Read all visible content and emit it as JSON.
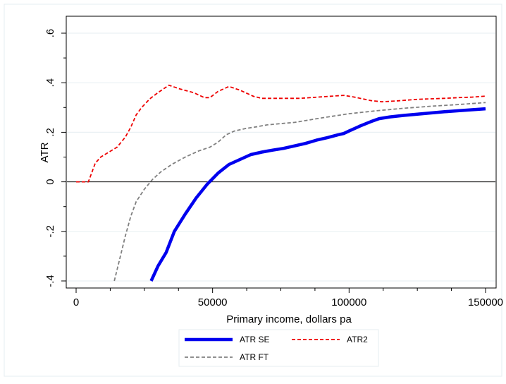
{
  "chart_data": {
    "type": "line",
    "xlabel": "Primary income, dollars pa",
    "ylabel": "ATR",
    "xlim": [
      0,
      150000
    ],
    "ylim": [
      -0.4,
      0.6
    ],
    "xticks": [
      {
        "value": 0,
        "label": "0"
      },
      {
        "value": 50000,
        "label": "50000"
      },
      {
        "value": 100000,
        "label": "100000"
      },
      {
        "value": 150000,
        "label": "150000"
      }
    ],
    "yticks": [
      {
        "value": -0.4,
        "label": "-.4"
      },
      {
        "value": -0.2,
        "label": "-.2"
      },
      {
        "value": 0,
        "label": "0"
      },
      {
        "value": 0.2,
        "label": ".2"
      },
      {
        "value": 0.4,
        "label": ".4"
      },
      {
        "value": 0.6,
        "label": ".6"
      }
    ],
    "grid": "horizontal",
    "zero_line": true,
    "legend_position": "bottom",
    "series": [
      {
        "name": "ATR SE",
        "color": "#0000ee",
        "style": "solid-thick",
        "points": [
          [
            27500,
            -0.4
          ],
          [
            30000,
            -0.34
          ],
          [
            33000,
            -0.285
          ],
          [
            36000,
            -0.2
          ],
          [
            40000,
            -0.13
          ],
          [
            44000,
            -0.065
          ],
          [
            48000,
            -0.01
          ],
          [
            52000,
            0.035
          ],
          [
            56000,
            0.07
          ],
          [
            60000,
            0.09
          ],
          [
            64000,
            0.11
          ],
          [
            68000,
            0.12
          ],
          [
            72000,
            0.128
          ],
          [
            76000,
            0.135
          ],
          [
            80000,
            0.145
          ],
          [
            84000,
            0.155
          ],
          [
            88000,
            0.168
          ],
          [
            92000,
            0.178
          ],
          [
            96000,
            0.19
          ],
          [
            98000,
            0.195
          ],
          [
            100000,
            0.205
          ],
          [
            104000,
            0.225
          ],
          [
            108000,
            0.243
          ],
          [
            111000,
            0.255
          ],
          [
            115000,
            0.262
          ],
          [
            120000,
            0.268
          ],
          [
            125000,
            0.273
          ],
          [
            130000,
            0.278
          ],
          [
            135000,
            0.283
          ],
          [
            140000,
            0.287
          ],
          [
            145000,
            0.291
          ],
          [
            150000,
            0.295
          ]
        ]
      },
      {
        "name": "ATR2",
        "color": "#ee0000",
        "style": "dashed",
        "points": [
          [
            0,
            0
          ],
          [
            4500,
            0
          ],
          [
            5500,
            0.03
          ],
          [
            7000,
            0.075
          ],
          [
            9000,
            0.1
          ],
          [
            12000,
            0.12
          ],
          [
            15000,
            0.14
          ],
          [
            18000,
            0.18
          ],
          [
            20000,
            0.22
          ],
          [
            22000,
            0.27
          ],
          [
            24000,
            0.3
          ],
          [
            27000,
            0.335
          ],
          [
            30000,
            0.36
          ],
          [
            34000,
            0.39
          ],
          [
            38000,
            0.375
          ],
          [
            43000,
            0.36
          ],
          [
            47000,
            0.34
          ],
          [
            49000,
            0.34
          ],
          [
            52000,
            0.365
          ],
          [
            56000,
            0.385
          ],
          [
            60000,
            0.37
          ],
          [
            65000,
            0.345
          ],
          [
            68000,
            0.337
          ],
          [
            75000,
            0.337
          ],
          [
            82000,
            0.337
          ],
          [
            90000,
            0.343
          ],
          [
            98000,
            0.349
          ],
          [
            102000,
            0.342
          ],
          [
            108000,
            0.328
          ],
          [
            112000,
            0.323
          ],
          [
            118000,
            0.327
          ],
          [
            125000,
            0.333
          ],
          [
            135000,
            0.337
          ],
          [
            140000,
            0.34
          ],
          [
            145000,
            0.342
          ],
          [
            150000,
            0.346
          ]
        ]
      },
      {
        "name": "ATR FT",
        "color": "#808080",
        "style": "dashed",
        "points": [
          [
            14000,
            -0.4
          ],
          [
            16000,
            -0.31
          ],
          [
            18000,
            -0.22
          ],
          [
            20000,
            -0.14
          ],
          [
            22000,
            -0.08
          ],
          [
            25000,
            -0.03
          ],
          [
            28000,
            0.01
          ],
          [
            31000,
            0.04
          ],
          [
            35000,
            0.07
          ],
          [
            40000,
            0.1
          ],
          [
            45000,
            0.125
          ],
          [
            49000,
            0.14
          ],
          [
            52000,
            0.16
          ],
          [
            55000,
            0.19
          ],
          [
            58000,
            0.205
          ],
          [
            62000,
            0.215
          ],
          [
            66000,
            0.222
          ],
          [
            70000,
            0.23
          ],
          [
            75000,
            0.235
          ],
          [
            80000,
            0.24
          ],
          [
            90000,
            0.258
          ],
          [
            100000,
            0.275
          ],
          [
            110000,
            0.287
          ],
          [
            120000,
            0.297
          ],
          [
            130000,
            0.305
          ],
          [
            140000,
            0.312
          ],
          [
            150000,
            0.32
          ]
        ]
      }
    ]
  }
}
